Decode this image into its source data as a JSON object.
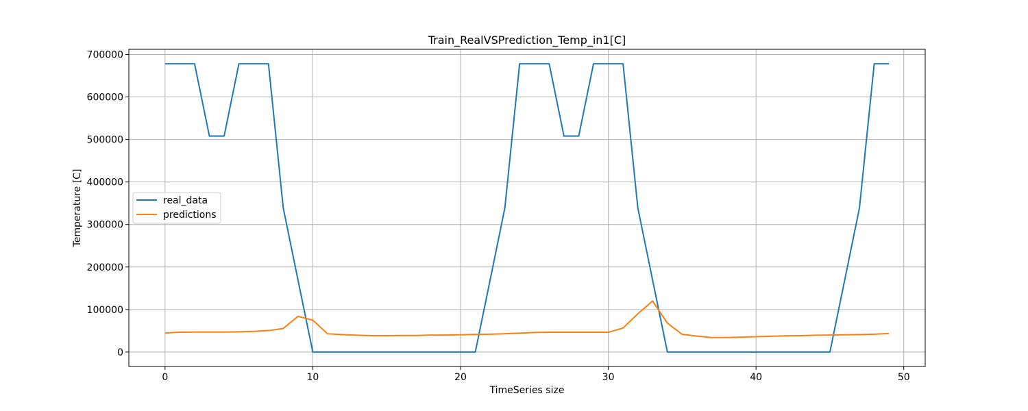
{
  "chart_data": {
    "type": "line",
    "title": "Train_RealVSPrediction_Temp_in1[C]",
    "xlabel": "TimeSeries size",
    "ylabel": "Temperature [C]",
    "xlim": [
      -2.45,
      51.45
    ],
    "ylim": [
      -34000,
      712000
    ],
    "xticks": [
      0,
      10,
      20,
      30,
      40,
      50
    ],
    "yticks": [
      0,
      100000,
      200000,
      300000,
      400000,
      500000,
      600000,
      700000
    ],
    "grid": true,
    "legend_position": "center-left",
    "x": [
      0,
      1,
      2,
      3,
      4,
      5,
      6,
      7,
      8,
      9,
      10,
      11,
      12,
      13,
      14,
      15,
      16,
      17,
      18,
      19,
      20,
      21,
      22,
      23,
      24,
      25,
      26,
      27,
      28,
      29,
      30,
      31,
      32,
      33,
      34,
      35,
      36,
      37,
      38,
      39,
      40,
      41,
      42,
      43,
      44,
      45,
      46,
      47,
      48,
      49
    ],
    "series": [
      {
        "name": "real_data",
        "color": "#1f77b4",
        "values": [
          678000,
          678000,
          678000,
          508000,
          508000,
          678000,
          678000,
          678000,
          339000,
          169000,
          0,
          0,
          0,
          0,
          0,
          0,
          0,
          0,
          0,
          0,
          0,
          0,
          169000,
          339000,
          678000,
          678000,
          678000,
          508000,
          508000,
          678000,
          678000,
          678000,
          339000,
          169000,
          0,
          0,
          0,
          0,
          0,
          0,
          0,
          0,
          0,
          0,
          0,
          0,
          169000,
          339000,
          678000,
          678000
        ]
      },
      {
        "name": "predictions",
        "color": "#ff7f0e",
        "values": [
          45000,
          46500,
          47000,
          47000,
          47000,
          47500,
          48500,
          50500,
          55500,
          84000,
          75000,
          43000,
          41000,
          39500,
          38500,
          38500,
          39000,
          39000,
          40000,
          40000,
          40500,
          41500,
          42000,
          43000,
          44500,
          46000,
          46500,
          46500,
          46500,
          46500,
          46500,
          56500,
          90000,
          120000,
          68000,
          41500,
          37500,
          34000,
          34000,
          35000,
          36000,
          37000,
          38000,
          38500,
          39500,
          40000,
          40500,
          41000,
          42000,
          43500
        ]
      }
    ]
  }
}
